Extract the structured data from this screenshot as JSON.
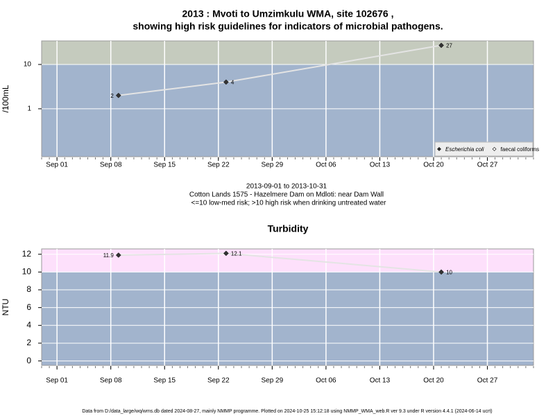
{
  "chart_data": [
    {
      "type": "line",
      "title": [
        "2013 : Mvoti to Umzimkulu WMA, site 102676 ,",
        "showing high risk guidelines for indicators of microbial pathogens."
      ],
      "ylabel": "/100mL",
      "log_y": true,
      "threshold": 10,
      "above_color": "#c5cbbe",
      "below_color": "#a2b4cd",
      "grid": true,
      "legend": "bottom-right",
      "xlim": [
        "2013-08-30",
        "2013-11-02"
      ],
      "xticks": [
        {
          "value": "2013-09-01",
          "label": "Sep 01"
        },
        {
          "value": "2013-09-08",
          "label": "Sep 08"
        },
        {
          "value": "2013-09-15",
          "label": "Sep 15"
        },
        {
          "value": "2013-09-22",
          "label": "Sep 22"
        },
        {
          "value": "2013-09-29",
          "label": "Sep 29"
        },
        {
          "value": "2013-10-06",
          "label": "Oct 06"
        },
        {
          "value": "2013-10-13",
          "label": "Oct 13"
        },
        {
          "value": "2013-10-20",
          "label": "Oct 20"
        },
        {
          "value": "2013-10-27",
          "label": "Oct 27"
        }
      ],
      "ylim": [
        0.083,
        34
      ],
      "yticks": [
        1,
        10
      ],
      "series": [
        {
          "name": "Escherichia coli",
          "color": "#333333",
          "x": [
            "2013-09-09",
            "2013-09-23",
            "2013-10-21"
          ],
          "values": [
            2,
            4,
            27
          ]
        },
        {
          "name": "faecal coliforms",
          "color": "#ffffff",
          "x": [],
          "values": []
        }
      ],
      "notes": [
        "2013-09-01 to 2013-10-31",
        "Cotton Lands 1575 - Hazelmere Dam on Mdloti: near Dam Wall",
        "<=10 low-med risk; >10 high risk when drinking untreated water"
      ]
    },
    {
      "type": "line",
      "title": [
        "Turbidity"
      ],
      "ylabel": "NTU",
      "log_y": false,
      "threshold": 10,
      "above_color": "#fde0fb",
      "below_color": "#a2b4cd",
      "grid": true,
      "xlim": [
        "2013-08-30",
        "2013-11-02"
      ],
      "xticks": [
        {
          "value": "2013-09-01",
          "label": "Sep 01"
        },
        {
          "value": "2013-09-08",
          "label": "Sep 08"
        },
        {
          "value": "2013-09-15",
          "label": "Sep 15"
        },
        {
          "value": "2013-09-22",
          "label": "Sep 22"
        },
        {
          "value": "2013-09-29",
          "label": "Sep 29"
        },
        {
          "value": "2013-10-06",
          "label": "Oct 06"
        },
        {
          "value": "2013-10-13",
          "label": "Oct 13"
        },
        {
          "value": "2013-10-20",
          "label": "Oct 20"
        },
        {
          "value": "2013-10-27",
          "label": "Oct 27"
        }
      ],
      "ylim": [
        -0.5,
        12.6
      ],
      "yticks": [
        0,
        2,
        4,
        6,
        8,
        10,
        12
      ],
      "series": [
        {
          "name": "Turbidity",
          "color": "#333333",
          "x": [
            "2013-09-09",
            "2013-09-23",
            "2013-10-21"
          ],
          "values": [
            11.9,
            12.1,
            10
          ]
        }
      ]
    }
  ],
  "footer": "Data from D:/data_large/wq/wms.db dated 2024-08-27, mainly NMMP programme. Plotted on 2024-10-25 15:12:18 using NMMP_WMA_web.R ver 9.3 under R version 4.4.1 (2024-06-14 ucrt)"
}
